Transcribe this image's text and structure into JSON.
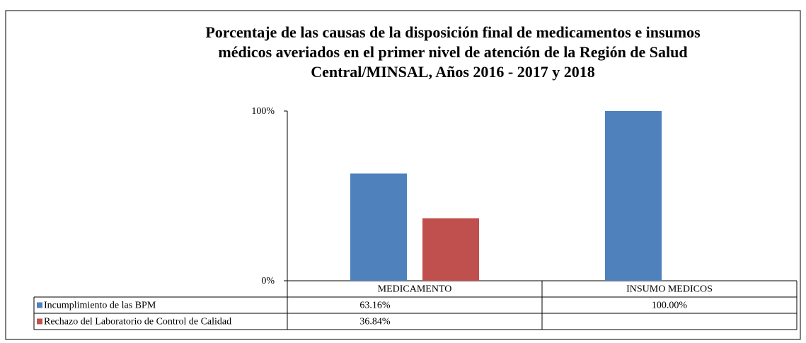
{
  "chart_data": {
    "type": "bar",
    "title": [
      "Porcentaje de las causas de la disposición final de medicamentos e insumos",
      "médicos averiados en el primer nivel de atención de la Región de Salud",
      "Central/MINSAL,  Años 2016  - 2017 y  2018"
    ],
    "categories": [
      "MEDICAMENTO",
      "INSUMO MEDICOS"
    ],
    "series": [
      {
        "name": "Incumplimiento de las BPM",
        "color": "#4f81bd",
        "values": [
          63.16,
          100
        ],
        "value_labels": [
          "63.16%",
          "100.00%"
        ]
      },
      {
        "name": "Rechazo del Laboratorio de Control de Calidad",
        "color": "#c0504d",
        "values": [
          36.84,
          null
        ],
        "value_labels": [
          "36.84%",
          null
        ]
      }
    ],
    "ylim": [
      0,
      100
    ],
    "yticks": [
      {
        "value": 0,
        "label": "0%"
      },
      {
        "value": 100,
        "label": "100%"
      }
    ],
    "data_table": true
  }
}
